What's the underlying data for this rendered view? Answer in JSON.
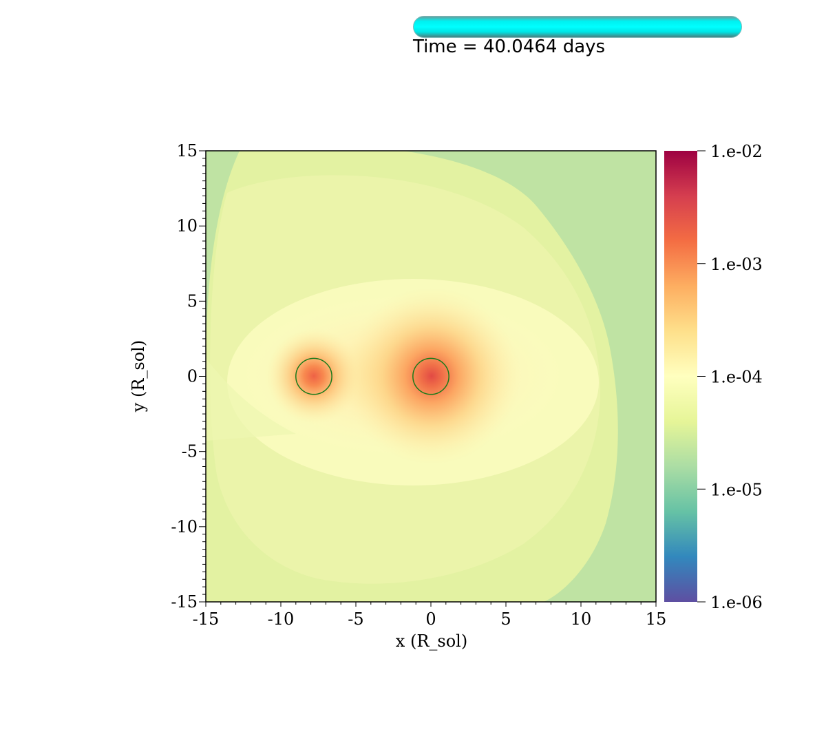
{
  "progress": {
    "fraction": 1.0,
    "color": "#00ffff"
  },
  "time_label": "Time = 40.0464 days",
  "chart_data": {
    "type": "heatmap",
    "title": "",
    "xlabel": "x (R_sol)",
    "ylabel": "y (R_sol)",
    "xlim": [
      -15,
      15
    ],
    "ylim": [
      -15,
      15
    ],
    "xticks": [
      "-15",
      "-10",
      "-5",
      "0",
      "5",
      "10",
      "15"
    ],
    "yticks": [
      "-15",
      "-10",
      "-5",
      "0",
      "5",
      "10",
      "15"
    ],
    "grid": false,
    "colorbar": {
      "scale": "log",
      "range": [
        1e-06,
        0.01
      ],
      "colormap": "Spectral (reversed)",
      "ticks": [
        "1.e-06",
        "1.e-05",
        "1.e-04",
        "1.e-03",
        "1.e-02"
      ],
      "colors": [
        "#5e4fa2",
        "#3288bd",
        "#66c2a5",
        "#abdda4",
        "#e6f598",
        "#ffffbf",
        "#fee08b",
        "#fdae61",
        "#f46d43",
        "#d53e4f",
        "#9e0142"
      ]
    },
    "markers": [
      {
        "shape": "circle",
        "x": -7.8,
        "y": 0.0,
        "radius": 1.2,
        "color": "#1a7a1a"
      },
      {
        "shape": "circle",
        "x": 0.0,
        "y": 0.0,
        "radius": 1.2,
        "color": "#1a7a1a"
      }
    ]
  }
}
